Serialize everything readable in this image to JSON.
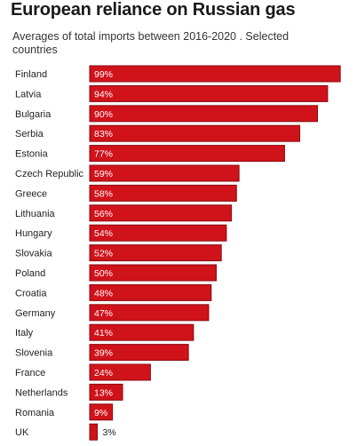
{
  "chart_data": {
    "type": "bar",
    "orientation": "horizontal",
    "title": "European reliance on Russian gas",
    "subtitle": "Averages of total imports between 2016-2020 . Selected countries",
    "categories": [
      "Finland",
      "Latvia",
      "Bulgaria",
      "Serbia",
      "Estonia",
      "Czech Republic",
      "Greece",
      "Lithuania",
      "Hungary",
      "Slovakia",
      "Poland",
      "Croatia",
      "Germany",
      "Italy",
      "Slovenia",
      "France",
      "Netherlands",
      "Romania",
      "UK"
    ],
    "values": [
      99,
      94,
      90,
      83,
      77,
      59,
      58,
      56,
      54,
      52,
      50,
      48,
      47,
      41,
      39,
      24,
      13,
      9,
      3
    ],
    "value_labels": [
      "99%",
      "94%",
      "90%",
      "83%",
      "77%",
      "59%",
      "58%",
      "56%",
      "54%",
      "52%",
      "50%",
      "48%",
      "47%",
      "41%",
      "39%",
      "24%",
      "13%",
      "9%",
      "3%"
    ],
    "unit": "%",
    "bar_color": "#d0121b",
    "bar_outline": "#8a0b10",
    "label_inside_color": "#ffffff",
    "label_outside_color": "#222222",
    "xlim": [
      0,
      100
    ],
    "grid": false,
    "legend": "none"
  }
}
